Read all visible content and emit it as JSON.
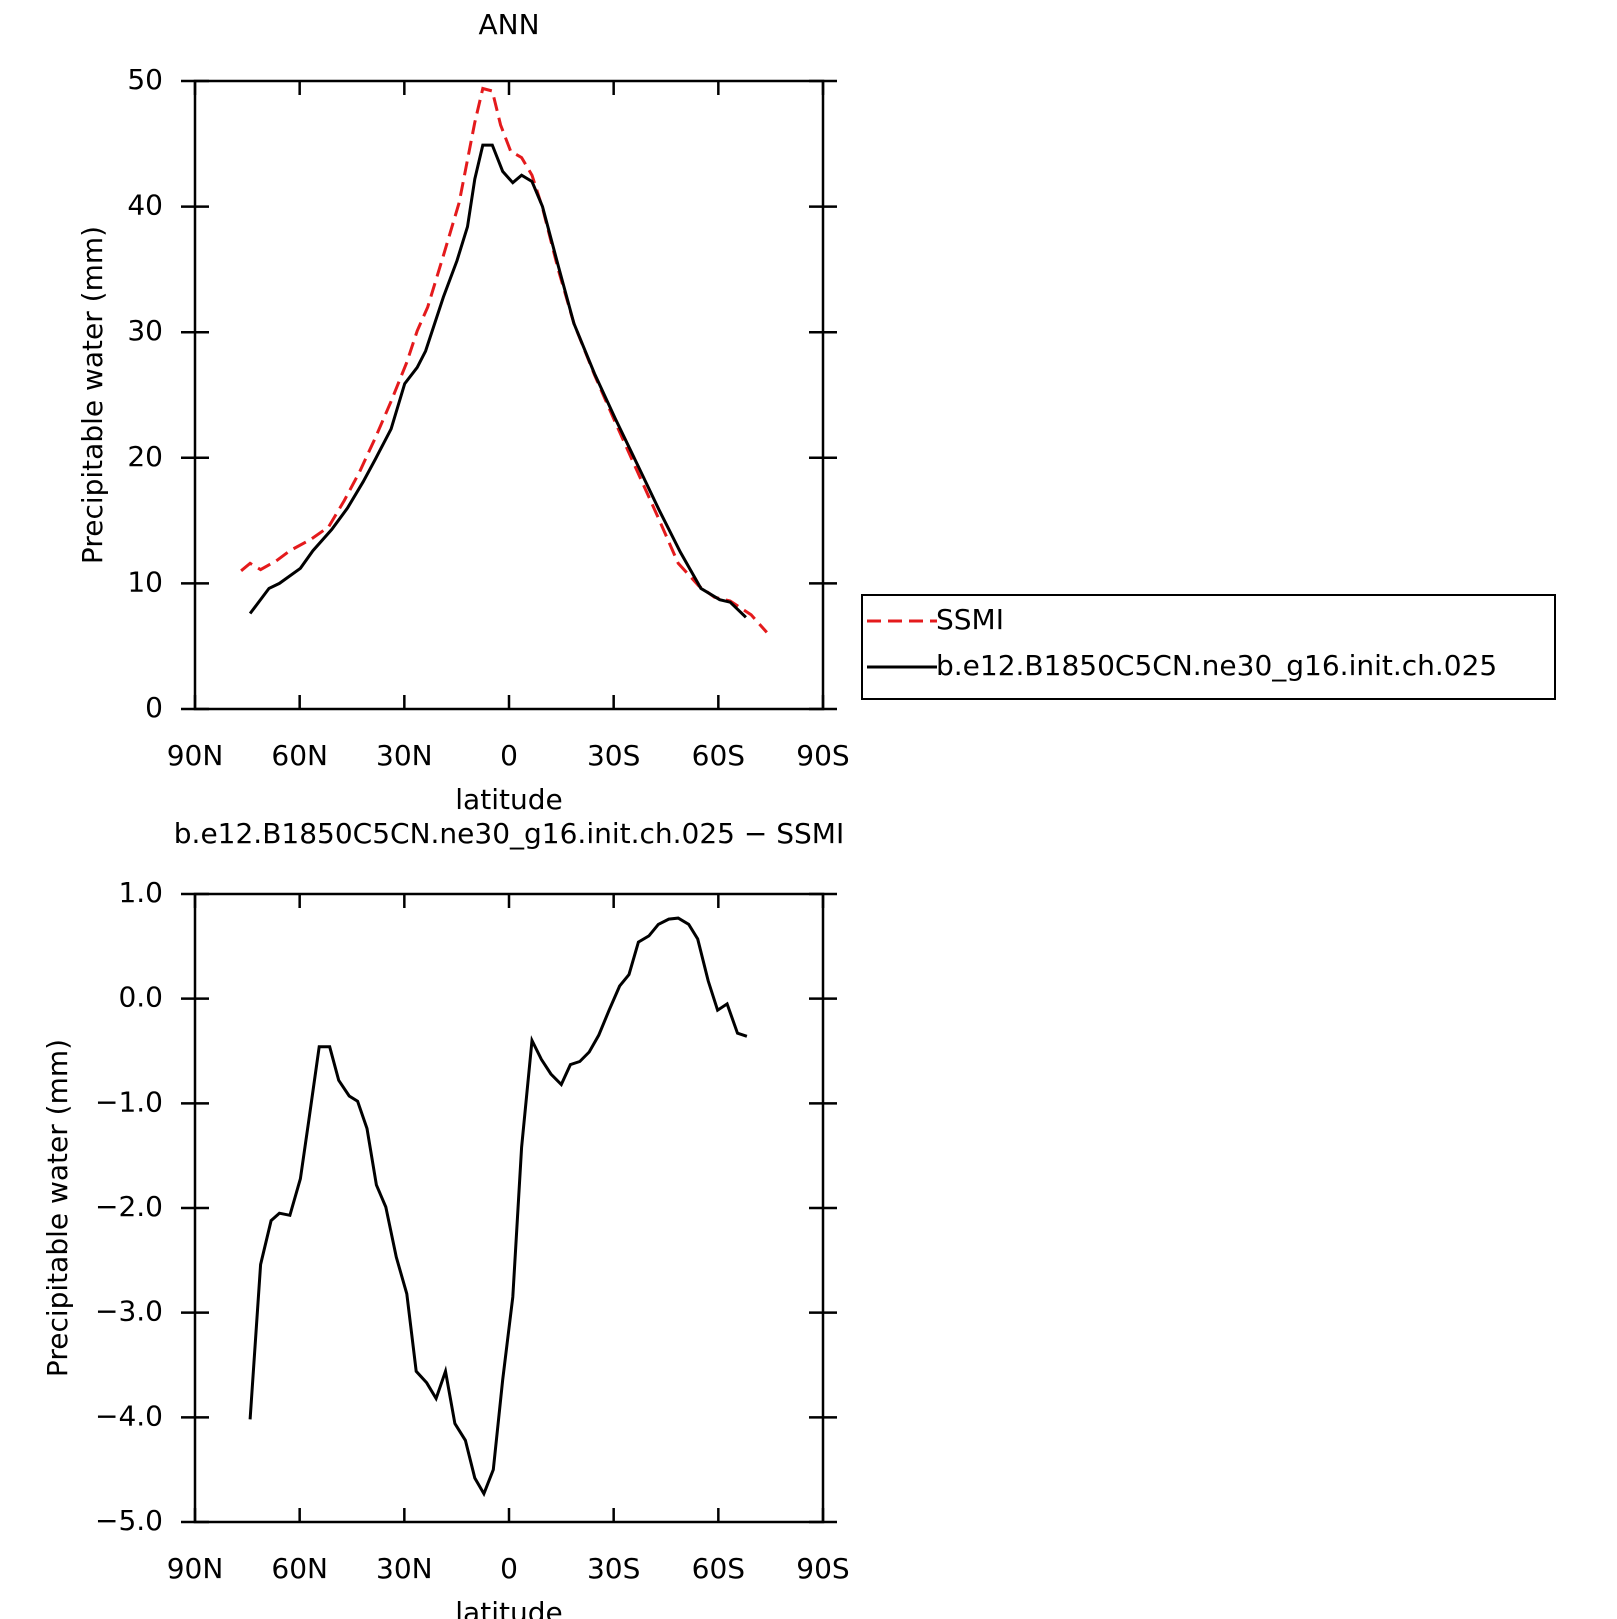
{
  "chart_data": [
    {
      "type": "line",
      "title": "ANN",
      "xlabel": "latitude",
      "ylabel": "Precipitable water (mm)",
      "xlim": [
        90,
        -90
      ],
      "xticks": [
        {
          "value": 90,
          "label": "90N"
        },
        {
          "value": 60,
          "label": "60N"
        },
        {
          "value": 30,
          "label": "30N"
        },
        0,
        {
          "value": -30,
          "label": "30S"
        },
        {
          "value": -60,
          "label": "60S"
        },
        {
          "value": -90,
          "label": "90S"
        }
      ],
      "ylim": [
        0,
        50
      ],
      "yticks": [
        0,
        10,
        20,
        30,
        40,
        50
      ],
      "legend": "right",
      "series": [
        {
          "name": "SSMI",
          "color": "#e41a1c",
          "linestyle": "dashed",
          "x": [
            76.8,
            74.2,
            71.2,
            66.7,
            62.8,
            56.8,
            51.7,
            47.2,
            42.8,
            38.3,
            33.8,
            29.3,
            26.3,
            23.3,
            18.8,
            14.3,
            9.8,
            7.5,
            4.8,
            2.4,
            -0.5,
            -3.6,
            -6.6,
            -9.6,
            -14.1,
            -18.6,
            -24.5,
            -30.5,
            -36.5,
            -42.5,
            -48.5,
            -54.4,
            -58.9,
            -63.4,
            -69.4,
            -73.9
          ],
          "values": [
            11.0,
            11.6,
            11.1,
            11.8,
            12.6,
            13.5,
            14.5,
            16.6,
            18.9,
            21.6,
            24.5,
            27.6,
            30.1,
            32.0,
            36.1,
            40.3,
            46.7,
            49.4,
            49.2,
            46.5,
            44.4,
            43.9,
            42.5,
            39.9,
            35.0,
            30.7,
            26.6,
            22.8,
            19.1,
            15.4,
            11.6,
            9.8,
            8.9,
            8.6,
            7.5,
            6.1
          ]
        },
        {
          "name": "b.e12.B1850C5CN.ne30_g16.init.ch.025",
          "color": "#000000",
          "linestyle": "solid",
          "x": [
            74.2,
            68.8,
            65.8,
            59.8,
            56.2,
            50.8,
            46.3,
            41.8,
            38.3,
            33.8,
            29.9,
            26.3,
            23.9,
            18.8,
            14.9,
            11.9,
            9.8,
            7.5,
            4.8,
            1.8,
            -1.1,
            -3.6,
            -6.6,
            -9.6,
            -14.1,
            -18.6,
            -24.5,
            -30.5,
            -37.1,
            -43.1,
            -49.1,
            -55.0,
            -60.4,
            -63.4,
            -67.9
          ],
          "values": [
            7.6,
            9.6,
            10.0,
            11.2,
            12.6,
            14.3,
            16.0,
            18.1,
            19.9,
            22.3,
            25.9,
            27.2,
            28.5,
            32.8,
            35.7,
            38.4,
            42.2,
            44.9,
            44.9,
            42.8,
            41.9,
            42.5,
            42.0,
            40.0,
            35.3,
            30.7,
            26.7,
            23.1,
            19.3,
            15.8,
            12.5,
            9.6,
            8.7,
            8.5,
            7.3
          ]
        }
      ]
    },
    {
      "type": "line",
      "title": "b.e12.B1850C5CN.ne30_g16.init.ch.025 − SSMI",
      "xlabel": "latitude",
      "ylabel": "Precipitable water (mm)",
      "xlim": [
        90,
        -90
      ],
      "xticks": [
        {
          "value": 90,
          "label": "90N"
        },
        {
          "value": 60,
          "label": "60N"
        },
        {
          "value": 30,
          "label": "30N"
        },
        0,
        {
          "value": -30,
          "label": "30S"
        },
        {
          "value": -60,
          "label": "60S"
        },
        {
          "value": -90,
          "label": "90S"
        }
      ],
      "ylim": [
        -5,
        1
      ],
      "yticks": [
        {
          "value": -5,
          "label": "−5.0"
        },
        {
          "value": -4,
          "label": "−4.0"
        },
        {
          "value": -3,
          "label": "−3.0"
        },
        {
          "value": -2,
          "label": "−2.0"
        },
        {
          "value": -1,
          "label": "−1.0"
        },
        {
          "value": 0,
          "label": "0.0"
        },
        {
          "value": 1,
          "label": "1.0"
        }
      ],
      "series": [
        {
          "color": "#000000",
          "linestyle": "solid",
          "x": [
            74.2,
            71.2,
            68.2,
            65.8,
            62.8,
            59.8,
            57.4,
            54.4,
            51.4,
            48.8,
            45.8,
            43.4,
            40.7,
            38.0,
            35.3,
            32.3,
            29.3,
            26.6,
            23.6,
            20.9,
            18.2,
            15.5,
            12.5,
            9.8,
            7.2,
            4.5,
            1.8,
            -1.1,
            -3.6,
            -6.6,
            -9.3,
            -12.0,
            -15.0,
            -17.6,
            -20.3,
            -23.0,
            -25.7,
            -28.7,
            -31.7,
            -34.4,
            -37.1,
            -40.1,
            -42.8,
            -45.8,
            -48.5,
            -51.5,
            -54.1,
            -57.1,
            -59.8,
            -62.5,
            -65.5,
            -68.2
          ],
          "values": [
            -4.02,
            -2.54,
            -2.12,
            -2.05,
            -2.07,
            -1.72,
            -1.17,
            -0.46,
            -0.46,
            -0.78,
            -0.93,
            -0.98,
            -1.24,
            -1.78,
            -1.99,
            -2.47,
            -2.82,
            -3.56,
            -3.67,
            -3.82,
            -3.56,
            -4.06,
            -4.22,
            -4.58,
            -4.73,
            -4.5,
            -3.64,
            -2.85,
            -1.42,
            -0.4,
            -0.58,
            -0.72,
            -0.82,
            -0.63,
            -0.6,
            -0.51,
            -0.35,
            -0.11,
            0.12,
            0.23,
            0.54,
            0.6,
            0.71,
            0.76,
            0.77,
            0.71,
            0.57,
            0.17,
            -0.11,
            -0.05,
            -0.33,
            -0.36
          ]
        }
      ]
    }
  ]
}
